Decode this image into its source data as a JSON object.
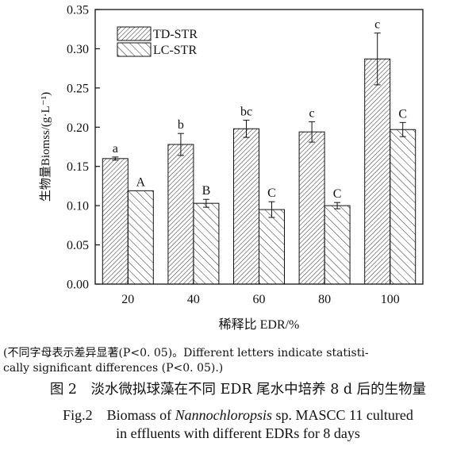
{
  "chart_data": {
    "type": "bar",
    "categories": [
      "20",
      "40",
      "60",
      "80",
      "100"
    ],
    "series": [
      {
        "name": "TD-STR",
        "values": [
          0.16,
          0.178,
          0.198,
          0.194,
          0.287
        ],
        "errors": [
          0.002,
          0.014,
          0.011,
          0.013,
          0.033
        ],
        "letters": [
          "a",
          "b",
          "bc",
          "c",
          "c"
        ],
        "hatch": "forward-dense"
      },
      {
        "name": "LC-STR",
        "values": [
          0.119,
          0.103,
          0.095,
          0.1,
          0.197
        ],
        "errors": [
          0.0,
          0.005,
          0.01,
          0.004,
          0.009
        ],
        "letters": [
          "A",
          "B",
          "C",
          "C",
          "C"
        ],
        "hatch": "back-sparse"
      }
    ],
    "ylabel": "生物量Biomss/(g·L⁻¹)",
    "xlabel": "稀释比 EDR/%",
    "ylim": [
      0,
      0.35
    ],
    "yticks": [
      "0.00",
      "0.05",
      "0.10",
      "0.15",
      "0.20",
      "0.25",
      "0.30",
      "0.35"
    ],
    "grid": false,
    "legend_position": "top-left"
  },
  "note": {
    "line1": "(不同字母表示差异显著(P<0. 05)。Different letters indicate statisti-",
    "line2": "cally significant differences (P<0. 05).)"
  },
  "caption": {
    "cn": "图 2　淡水微拟球藻在不同 EDR 尾水中培养 8 d 后的生物量",
    "en_line1_prefix": "Fig.2　Biomass of ",
    "en_species": "Nannochloropsis",
    "en_line1_suffix": " sp. MASCC 11 cultured",
    "en_line2": "in effluents with different EDRs for 8 days"
  },
  "colors": {
    "ink": "#111111",
    "background": "#ffffff"
  }
}
